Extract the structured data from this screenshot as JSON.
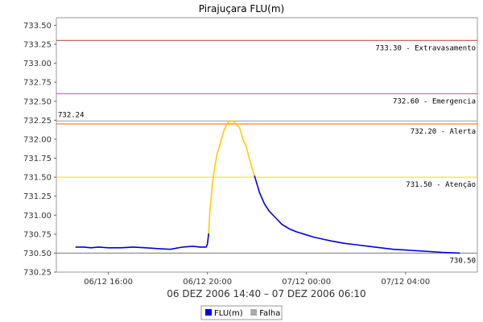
{
  "chart_data": {
    "type": "line",
    "title": "Pirajuçara FLU(m)",
    "subtitle": "06 DEZ 2006 14:40 – 07 DEZ 2006 06:10",
    "ylim": [
      730.25,
      733.6
    ],
    "y_ticks": [
      "730.25",
      "730.50",
      "730.75",
      "731.00",
      "731.25",
      "731.50",
      "731.75",
      "732.00",
      "732.25",
      "732.50",
      "732.75",
      "733.00",
      "733.25",
      "733.50"
    ],
    "x_ticks": [
      {
        "t": 16.0,
        "label": "06/12 16:00"
      },
      {
        "t": 20.0,
        "label": "06/12 20:00"
      },
      {
        "t": 24.0,
        "label": "07/12 00:00"
      },
      {
        "t": 28.0,
        "label": "07/12 04:00"
      }
    ],
    "xlim": [
      13.9,
      30.9
    ],
    "reference_lines": [
      {
        "value": 733.3,
        "label": "733.30 - Extravasamento",
        "color": "#c0392b"
      },
      {
        "value": 732.6,
        "label": "732.60 - Emergencia",
        "color": "#cc44cc"
      },
      {
        "value": 732.24,
        "label": "732.24",
        "color": "#999999"
      },
      {
        "value": 732.2,
        "label": "732.20 - Alerta",
        "color": "#ee6600"
      },
      {
        "value": 731.5,
        "label": "731.50 - Atenção",
        "color": "#eedd00"
      },
      {
        "value": 730.5,
        "label": "730.50",
        "color": "#777777"
      }
    ],
    "series": [
      {
        "name": "FLU(m)",
        "segments": [
          {
            "color": "#0000dd",
            "points": [
              [
                14.67,
                730.58
              ],
              [
                15.0,
                730.58
              ],
              [
                15.3,
                730.57
              ],
              [
                15.6,
                730.58
              ],
              [
                16.0,
                730.57
              ],
              [
                16.5,
                730.57
              ],
              [
                17.0,
                730.58
              ],
              [
                17.5,
                730.57
              ],
              [
                18.0,
                730.56
              ],
              [
                18.5,
                730.55
              ],
              [
                19.0,
                730.58
              ],
              [
                19.4,
                730.59
              ],
              [
                19.7,
                730.58
              ],
              [
                19.95,
                730.58
              ],
              [
                20.0,
                730.62
              ],
              [
                20.05,
                730.76
              ]
            ]
          },
          {
            "color": "#ffcc00",
            "points": [
              [
                20.05,
                730.76
              ],
              [
                20.1,
                731.05
              ],
              [
                20.2,
                731.4
              ],
              [
                20.3,
                731.65
              ],
              [
                20.4,
                731.82
              ],
              [
                20.5,
                731.92
              ],
              [
                20.65,
                732.1
              ],
              [
                20.8,
                732.21
              ],
              [
                20.9,
                732.24
              ],
              [
                21.05,
                732.24
              ],
              [
                21.15,
                732.2
              ],
              [
                21.3,
                732.15
              ],
              [
                21.45,
                731.98
              ],
              [
                21.55,
                731.92
              ],
              [
                21.65,
                731.8
              ],
              [
                21.8,
                731.62
              ],
              [
                21.9,
                731.52
              ]
            ]
          },
          {
            "color": "#0000dd",
            "points": [
              [
                21.9,
                731.52
              ],
              [
                22.1,
                731.3
              ],
              [
                22.3,
                731.15
              ],
              [
                22.5,
                731.05
              ],
              [
                22.8,
                730.95
              ],
              [
                23.0,
                730.88
              ],
              [
                23.3,
                730.82
              ],
              [
                23.6,
                730.78
              ],
              [
                24.0,
                730.74
              ],
              [
                24.3,
                730.71
              ],
              [
                24.7,
                730.68
              ],
              [
                25.0,
                730.66
              ],
              [
                25.5,
                730.63
              ],
              [
                26.0,
                730.61
              ],
              [
                26.5,
                730.59
              ],
              [
                27.0,
                730.57
              ],
              [
                27.5,
                730.55
              ],
              [
                28.0,
                730.54
              ],
              [
                28.5,
                730.53
              ],
              [
                29.0,
                730.52
              ],
              [
                29.5,
                730.51
              ],
              [
                30.2,
                730.5
              ]
            ]
          }
        ]
      }
    ],
    "legend": {
      "placement": "bottom-center",
      "entries": [
        {
          "name": "FLU(m)",
          "color": "#0000dd"
        },
        {
          "name": "Falha",
          "color": "#aaaaaa"
        }
      ]
    }
  }
}
